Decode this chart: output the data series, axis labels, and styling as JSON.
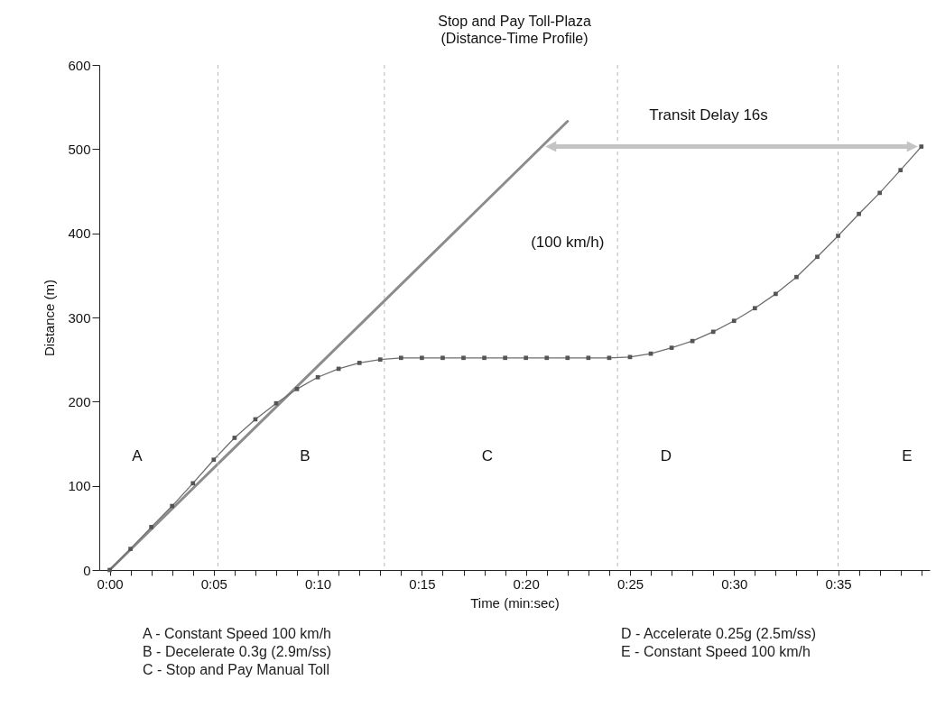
{
  "chart_data": {
    "type": "line",
    "title": "Stop and Pay Toll-Plaza",
    "subtitle": "(Distance-Time Profile)",
    "xlabel": "Time (min:sec)",
    "ylabel": "Distance (m)",
    "xlim": [
      -0.5,
      39.4
    ],
    "ylim": [
      0,
      600
    ],
    "yticks": [
      0,
      100,
      200,
      300,
      400,
      500,
      600
    ],
    "xticks": [
      {
        "value": 0,
        "label": "0:00"
      },
      {
        "value": 1,
        "label": null
      },
      {
        "value": 2,
        "label": null
      },
      {
        "value": 3,
        "label": null
      },
      {
        "value": 4,
        "label": null
      },
      {
        "value": 5,
        "label": "0:05"
      },
      {
        "value": 6,
        "label": null
      },
      {
        "value": 7,
        "label": null
      },
      {
        "value": 8,
        "label": null
      },
      {
        "value": 9,
        "label": null
      },
      {
        "value": 10,
        "label": "0:10"
      },
      {
        "value": 11,
        "label": null
      },
      {
        "value": 12,
        "label": null
      },
      {
        "value": 13,
        "label": null
      },
      {
        "value": 14,
        "label": null
      },
      {
        "value": 15,
        "label": "0:15"
      },
      {
        "value": 16,
        "label": null
      },
      {
        "value": 17,
        "label": null
      },
      {
        "value": 18,
        "label": null
      },
      {
        "value": 19,
        "label": null
      },
      {
        "value": 20,
        "label": "0:20"
      },
      {
        "value": 21,
        "label": null
      },
      {
        "value": 22,
        "label": null
      },
      {
        "value": 23,
        "label": null
      },
      {
        "value": 24,
        "label": null
      },
      {
        "value": 25,
        "label": "0:25"
      },
      {
        "value": 26,
        "label": null
      },
      {
        "value": 27,
        "label": null
      },
      {
        "value": 28,
        "label": null
      },
      {
        "value": 29,
        "label": null
      },
      {
        "value": 30,
        "label": "0:30"
      },
      {
        "value": 31,
        "label": null
      },
      {
        "value": 32,
        "label": null
      },
      {
        "value": 33,
        "label": null
      },
      {
        "value": 34,
        "label": null
      },
      {
        "value": 35,
        "label": "0:35"
      },
      {
        "value": 36,
        "label": null
      },
      {
        "value": 37,
        "label": null
      },
      {
        "value": 38,
        "label": null
      },
      {
        "value": 39,
        "label": null
      }
    ],
    "grid": false,
    "series": [
      {
        "name": "(100 km/h)",
        "color": "#8c8c8c",
        "x": [
          0,
          22
        ],
        "values": [
          0,
          533
        ]
      },
      {
        "color": "#6e6e6e",
        "marker": "square",
        "x": [
          0,
          1,
          2,
          3,
          4,
          5,
          6,
          7,
          8,
          9,
          10,
          11,
          12,
          13,
          14,
          15,
          16,
          17,
          18,
          19,
          20,
          21,
          22,
          23,
          24,
          25,
          26,
          27,
          28,
          29,
          30,
          31,
          32,
          33,
          34,
          35,
          36,
          37,
          38,
          39
        ],
        "values": [
          0,
          25,
          51,
          76,
          103,
          131,
          157,
          179,
          198,
          215,
          229,
          239,
          246,
          250,
          252,
          252,
          252,
          252,
          252,
          252,
          252,
          252,
          252,
          252,
          252,
          253,
          257,
          264,
          272,
          283,
          296,
          311,
          328,
          348,
          372,
          397,
          423,
          448,
          475,
          503
        ]
      }
    ],
    "ref_lines": [
      {
        "axis": "x",
        "value": 5.2,
        "label": null,
        "color": "#b8b8b8",
        "line_style": "dashed"
      },
      {
        "axis": "x",
        "value": 13.2,
        "label": null,
        "color": "#b8b8b8",
        "line_style": "dashed"
      },
      {
        "axis": "x",
        "value": 24.4,
        "label": null,
        "color": "#b8b8b8",
        "line_style": "dashed"
      },
      {
        "axis": "x",
        "value": 35,
        "label": null,
        "color": "#b8b8b8",
        "line_style": "dashed"
      }
    ],
    "annotations": [
      "A",
      "B",
      "C",
      "D",
      "E",
      "Transit Delay 16s",
      "A - Constant Speed 100 km/h",
      "B - Decelerate 0.3g (2.9m/ss)",
      "C - Stop and Pay Manual Toll",
      "D - Accelerate 0.25g (2.5m/ss)",
      "E - Constant Speed 100 km/h"
    ]
  }
}
